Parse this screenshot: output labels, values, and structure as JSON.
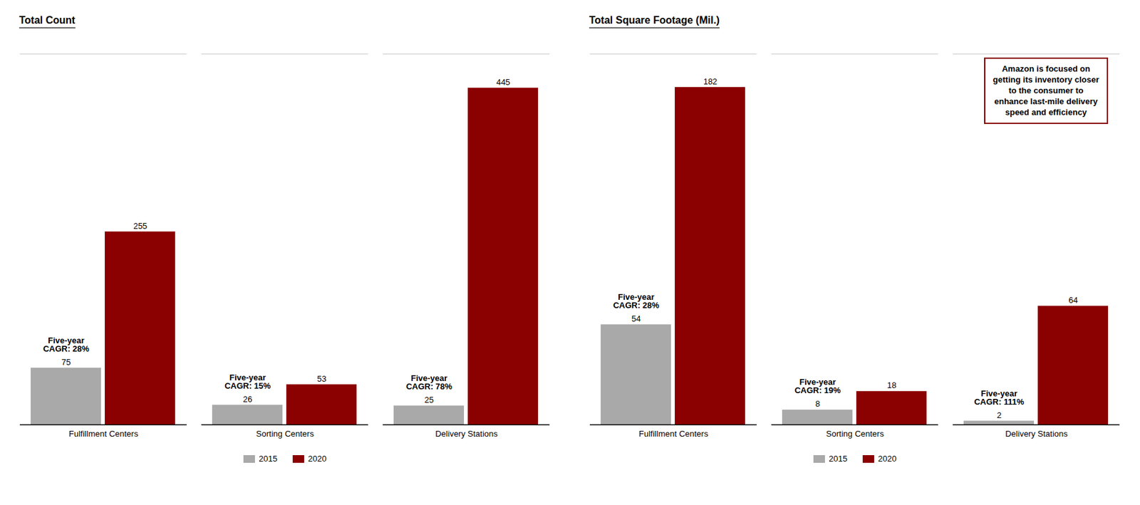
{
  "chart_data": [
    {
      "type": "bar",
      "title": "Total Count",
      "categories": [
        "Fulfillment Centers",
        "Sorting Centers",
        "Delivery Stations"
      ],
      "series": [
        {
          "name": "2015",
          "color": "#A9A9A9",
          "values": [
            75,
            26,
            25
          ]
        },
        {
          "name": "2020",
          "color": "#8B0000",
          "values": [
            255,
            53,
            445
          ]
        }
      ],
      "ylim": [
        0,
        490
      ],
      "yticks": [],
      "grid": false,
      "legend": "bottom",
      "data_labels": true,
      "tick_labels": "x",
      "annotations": [
        "Five-year\nCAGR: 28%",
        "Five-year\nCAGR: 15%",
        "Five-year\nCAGR: 78%"
      ]
    },
    {
      "type": "bar",
      "title": "Total Square Footage (Mil.)",
      "categories": [
        "Fulfillment Centers",
        "Sorting Centers",
        "Delivery Stations"
      ],
      "series": [
        {
          "name": "2015",
          "color": "#A9A9A9",
          "values": [
            54,
            8,
            2
          ]
        },
        {
          "name": "2020",
          "color": "#8B0000",
          "values": [
            182,
            18,
            64
          ]
        }
      ],
      "ylim": [
        0,
        200
      ],
      "yticks": [],
      "grid": false,
      "legend": "bottom",
      "data_labels": true,
      "tick_labels": "x",
      "annotations": [
        "Five-year\nCAGR: 28%",
        "Five-year\nCAGR: 19%",
        "Five-year\nCAGR: 111%"
      ],
      "annotation": "Amazon is focused on\ngetting its inventory closer\nto the consumer to\nenhance last-mile delivery\nspeed and efficiency"
    }
  ]
}
